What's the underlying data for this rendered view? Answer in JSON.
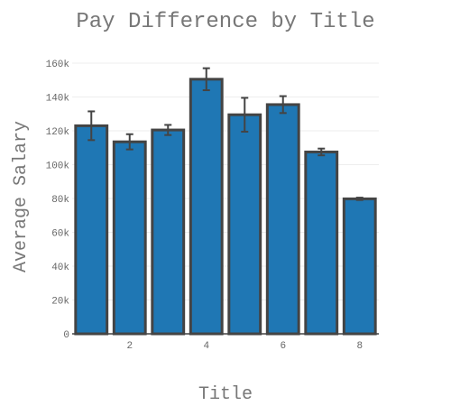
{
  "chart_data": {
    "type": "bar",
    "title": "Pay Difference by Title",
    "xlabel": "Title",
    "ylabel": "Average Salary",
    "x": [
      1,
      2,
      3,
      4,
      5,
      6,
      7,
      8
    ],
    "values": [
      123000,
      113500,
      120500,
      150500,
      129500,
      135500,
      107500,
      79800
    ],
    "errors": [
      8500,
      4500,
      3000,
      6500,
      10000,
      5000,
      2000,
      700
    ],
    "xlim": [
      0.5,
      8.5
    ],
    "ylim": [
      0,
      160000
    ],
    "x_ticks": [
      2,
      4,
      6,
      8
    ],
    "x_tick_labels": [
      "2",
      "4",
      "6",
      "8"
    ],
    "y_ticks": [
      0,
      20000,
      40000,
      60000,
      80000,
      100000,
      120000,
      140000,
      160000
    ],
    "y_tick_labels": [
      "0",
      "20k",
      "40k",
      "60k",
      "80k",
      "100k",
      "120k",
      "140k",
      "160k"
    ],
    "grid": true,
    "bar_color": "#1f77b4",
    "bar_edge_color": "#444444",
    "error_bar_color": "#444444"
  }
}
